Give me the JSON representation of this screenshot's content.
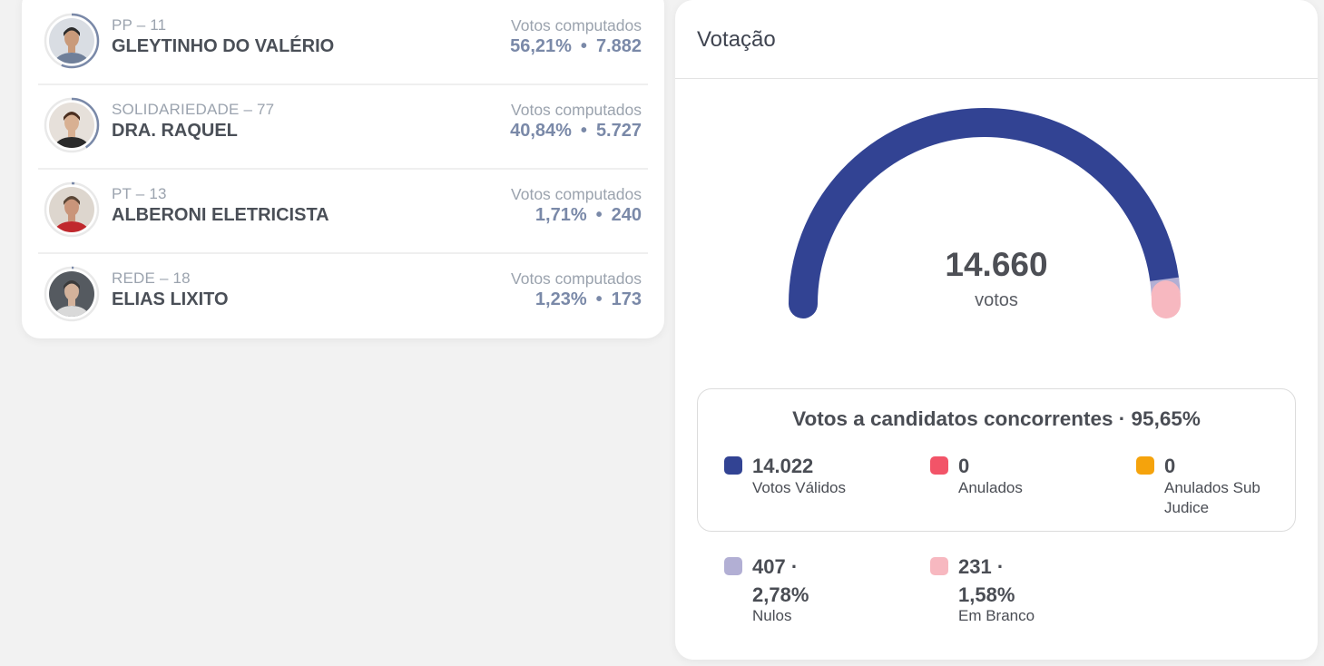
{
  "candidates": [
    {
      "party": "PP – 11",
      "name": "GLEYTINHO DO VALÉRIO",
      "votes_label": "Votos computados",
      "pct": "56,21%",
      "votes": "7.882",
      "share": 0.5621
    },
    {
      "party": "SOLIDARIEDADE – 77",
      "name": "DRA. RAQUEL",
      "votes_label": "Votos computados",
      "pct": "40,84%",
      "votes": "5.727",
      "share": 0.4084
    },
    {
      "party": "PT – 13",
      "name": "ALBERONI ELETRICISTA",
      "votes_label": "Votos computados",
      "pct": "1,71%",
      "votes": "240",
      "share": 0.0171
    },
    {
      "party": "REDE – 18",
      "name": "ELIAS LIXITO",
      "votes_label": "Votos computados",
      "pct": "1,23%",
      "votes": "173",
      "share": 0.0123
    }
  ],
  "votacao": {
    "title": "Votação",
    "total": "14.660",
    "total_label": "votos",
    "concorrentes_title": "Votos a candidatos concorrentes · 95,65%",
    "legend_box": [
      {
        "num": "14.022",
        "label": "Votos Válidos",
        "color": "#324393"
      },
      {
        "num": "0",
        "label": "Anulados",
        "color": "#f25468"
      },
      {
        "num": "0",
        "label": "Anulados Sub Judice",
        "color": "#f5a30c"
      }
    ],
    "legend_out": [
      {
        "num": "407 ·",
        "num2": "2,78%",
        "label": "Nulos",
        "color": "#b2afd4"
      },
      {
        "num": "231 ·",
        "num2": "1,58%",
        "label": "Em Branco",
        "color": "#f7b8c0"
      }
    ],
    "gauge_shares": {
      "validos": 0.9565,
      "nulos": 0.0278,
      "branco": 0.0158
    }
  },
  "colors": {
    "ring": "#7a89a8",
    "ring_bg": "#e9e9e9"
  }
}
